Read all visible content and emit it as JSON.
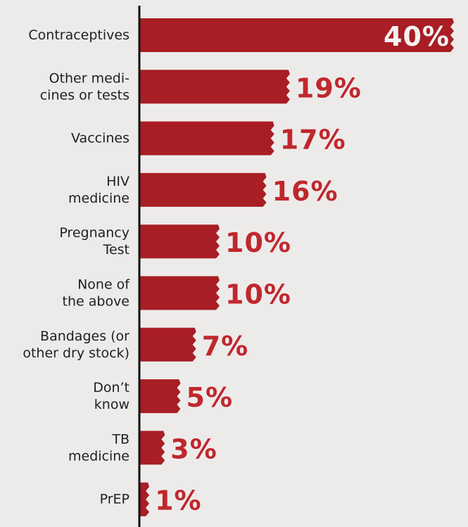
{
  "chart_data": {
    "type": "bar",
    "orientation": "horizontal",
    "categories": [
      [
        "Contraceptives"
      ],
      [
        "Other medi-",
        "cines or tests"
      ],
      [
        "Vaccines"
      ],
      [
        "HIV",
        "medicine"
      ],
      [
        "Pregnancy",
        "Test"
      ],
      [
        "None of",
        "the above"
      ],
      [
        "Bandages (or",
        "other dry stock)"
      ],
      [
        "Don’t",
        "know"
      ],
      [
        "TB",
        "medicine"
      ],
      [
        "PrEP"
      ]
    ],
    "values": [
      40,
      19,
      17,
      16,
      10,
      10,
      7,
      5,
      3,
      1
    ],
    "value_labels": [
      "40%",
      "19%",
      "17%",
      "16%",
      "10%",
      "10%",
      "7%",
      "5%",
      "3%",
      "1%"
    ],
    "xlim": [
      0,
      40
    ],
    "title": "",
    "xlabel": "",
    "ylabel": "",
    "grid": false,
    "colors": {
      "bar": "#a81e24",
      "label": "#c0272d",
      "background": "#edebea",
      "axis": "#111111"
    }
  }
}
